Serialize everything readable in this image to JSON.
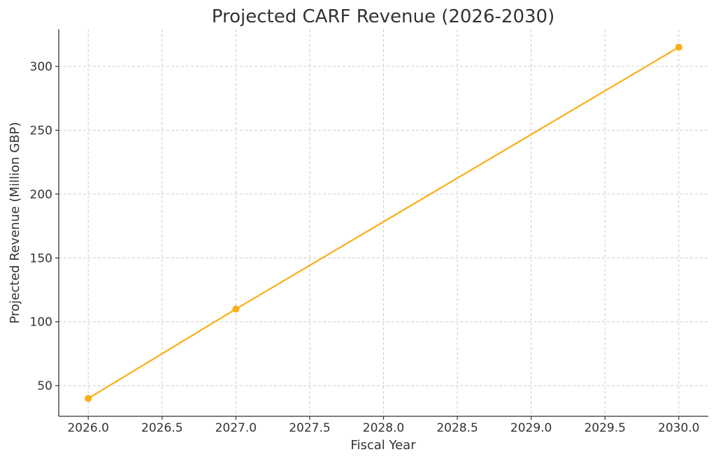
{
  "chart_data": {
    "type": "line",
    "title": "Projected CARF Revenue (2026-2030)",
    "xlabel": "Fiscal Year",
    "ylabel": "Projected Revenue (Million GBP)",
    "x": [
      2026,
      2027,
      2030
    ],
    "series": [
      {
        "values": [
          40,
          110,
          315
        ],
        "color": "#FBAE17",
        "marker": "circle"
      }
    ],
    "xlim": [
      2025.8,
      2030.2
    ],
    "ylim": [
      26,
      329
    ],
    "xticks": [
      2026.0,
      2026.5,
      2027.0,
      2027.5,
      2028.0,
      2028.5,
      2029.0,
      2029.5,
      2030.0
    ],
    "xtick_labels": [
      "2026.0",
      "2026.5",
      "2027.0",
      "2027.5",
      "2028.0",
      "2028.5",
      "2029.0",
      "2029.5",
      "2030.0"
    ],
    "yticks": [
      50,
      100,
      150,
      200,
      250,
      300
    ],
    "ytick_labels": [
      "50",
      "100",
      "150",
      "200",
      "250",
      "300"
    ],
    "grid": true,
    "legend": false
  }
}
